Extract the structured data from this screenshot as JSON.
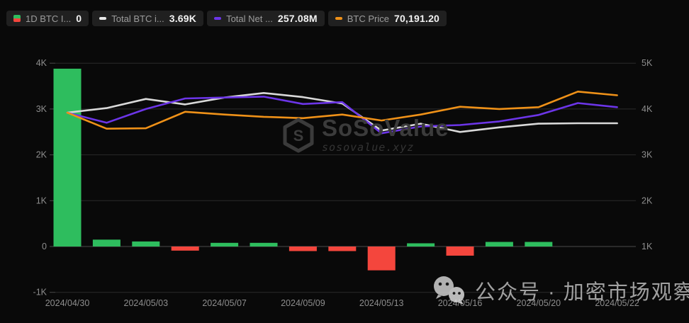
{
  "legend": {
    "items": [
      {
        "label": "1D BTC I...",
        "value": "0",
        "icon": "bar-green-red-icon",
        "color_top": "#2ebd5e",
        "color_bottom": "#f4463d"
      },
      {
        "label": "Total BTC i...",
        "value": "3.69K",
        "icon": "dash-icon",
        "color": "#e8e8e8"
      },
      {
        "label": "Total Net ...",
        "value": "257.08M",
        "icon": "dash-icon",
        "color": "#6c35e8"
      },
      {
        "label": "BTC Price",
        "value": "70,191.20",
        "icon": "dash-icon",
        "color": "#ef9118"
      }
    ]
  },
  "chart_data": {
    "type": "bar+line combo, dual y-axes, dark theme",
    "num_points": 15,
    "x_labels_visible": [
      "2024/04/30",
      "2024/05/03",
      "2024/05/07",
      "2024/05/09",
      "2024/05/13",
      "2024/05/16",
      "2024/05/20",
      "2024/05/22"
    ],
    "x_label_point_indices": [
      0,
      2,
      4,
      6,
      8,
      10,
      12,
      14
    ],
    "left_axis": {
      "ticks": [
        "4K",
        "3K",
        "2K",
        "1K",
        "0",
        "-1K"
      ],
      "tick_values": [
        4,
        3,
        2,
        1,
        0,
        -1
      ],
      "range": [
        -1,
        4
      ]
    },
    "right_axis": {
      "ticks": [
        "5K",
        "4K",
        "3K",
        "2K",
        "1K"
      ],
      "tick_values": [
        5,
        4,
        3,
        2,
        1
      ],
      "range": [
        0,
        5
      ]
    },
    "grid": "horizontal gridlines on, zero line emphasized",
    "legend_position": "top-left",
    "series": [
      {
        "legend_label": "1D BTC I...",
        "type": "bar",
        "axis": "left",
        "unit": "K",
        "positive_color": "#2ebd5e",
        "negative_color": "#f4463d",
        "values": [
          3.88,
          0.15,
          0.11,
          -0.09,
          0.08,
          0.08,
          -0.1,
          -0.1,
          -0.52,
          0.07,
          -0.2,
          0.1,
          0.1,
          0,
          0
        ]
      },
      {
        "legend_label": "Total BTC i...",
        "type": "line",
        "axis": "right",
        "unit": "K",
        "color": "#d9d9d9",
        "values": [
          3.92,
          4.02,
          4.22,
          4.1,
          4.25,
          4.35,
          4.26,
          4.12,
          3.53,
          3.68,
          3.5,
          3.6,
          3.68,
          3.69,
          3.69
        ]
      },
      {
        "legend_label": "Total Net ...",
        "type": "line",
        "axis": "right",
        "unit": "K (right-axis equivalent)",
        "color": "#6c35e8",
        "values": [
          3.92,
          3.7,
          4.0,
          4.23,
          4.25,
          4.27,
          4.11,
          4.15,
          3.47,
          3.62,
          3.65,
          3.73,
          3.87,
          4.13,
          4.04
        ]
      },
      {
        "legend_label": "BTC Price",
        "type": "line",
        "axis": "right",
        "unit": "K (right-axis equivalent)",
        "color": "#ef9118",
        "values": [
          3.92,
          3.57,
          3.58,
          3.94,
          3.88,
          3.83,
          3.8,
          3.88,
          3.75,
          3.88,
          4.05,
          4.0,
          4.04,
          4.38,
          4.3
        ]
      }
    ]
  },
  "watermark_center": {
    "title": "SoSoValue",
    "subtitle": "sosovalue.xyz"
  },
  "watermark_bottom": {
    "text": "公众号 · 加密市场观察"
  },
  "colors": {
    "background": "#090909",
    "grid_line": "#2b2b2b",
    "zero_line": "#4a4a4a",
    "axis_text": "#8d8d8d",
    "legend_pill_bg": "#202020"
  }
}
